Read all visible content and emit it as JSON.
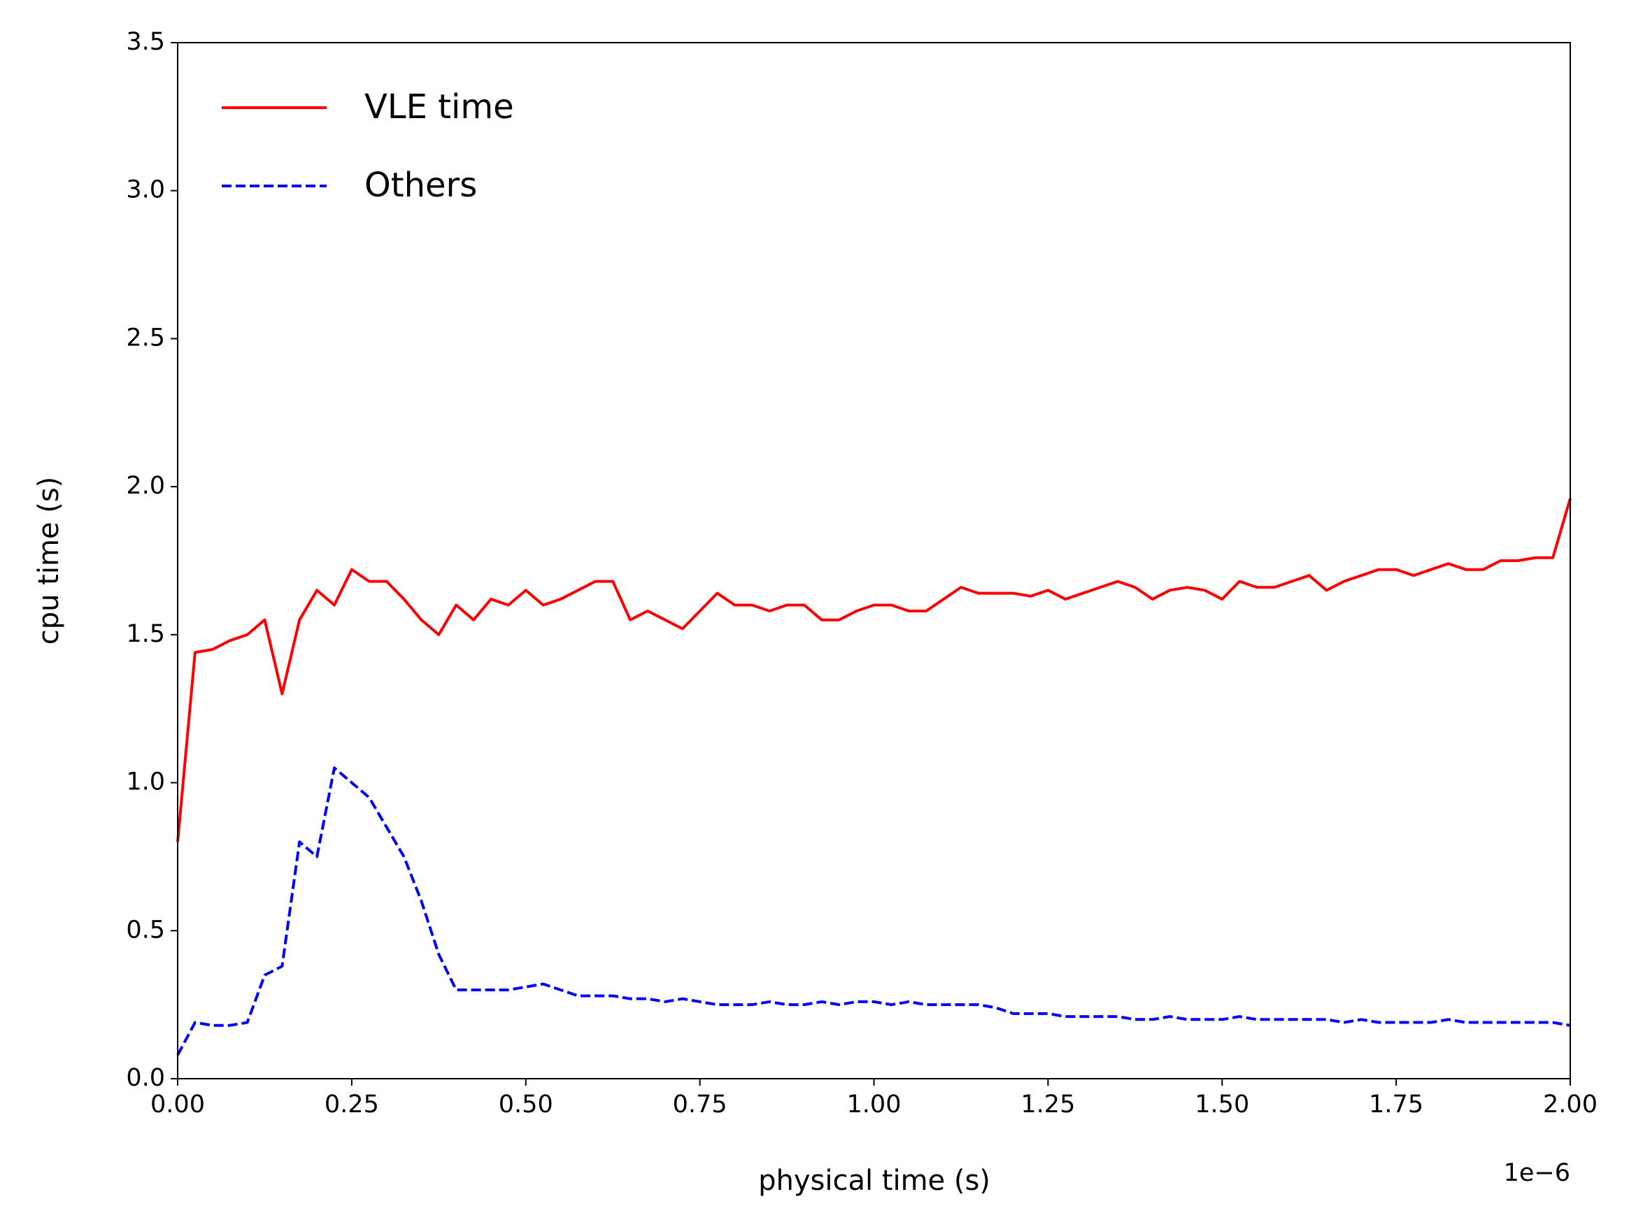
{
  "chart_data": {
    "type": "line",
    "xlabel": "physical time (s)",
    "ylabel": "cpu time (s)",
    "x_offset_label": "1e−6",
    "xlim": [
      0,
      2
    ],
    "ylim": [
      0,
      3.5
    ],
    "xticks": [
      {
        "value": 0,
        "label": "0.00"
      },
      {
        "value": 0.25,
        "label": "0.25"
      },
      {
        "value": 0.5,
        "label": "0.50"
      },
      {
        "value": 0.75,
        "label": "0.75"
      },
      {
        "value": 1,
        "label": "1.00"
      },
      {
        "value": 1.25,
        "label": "1.25"
      },
      {
        "value": 1.5,
        "label": "1.50"
      },
      {
        "value": 1.75,
        "label": "1.75"
      },
      {
        "value": 2,
        "label": "2.00"
      }
    ],
    "yticks": [
      {
        "value": 0,
        "label": "0.0"
      },
      0.5,
      {
        "value": 1,
        "label": "1.0"
      },
      1.5,
      {
        "value": 2,
        "label": "2.0"
      },
      2.5,
      {
        "value": 3,
        "label": "3.0"
      },
      3.5
    ],
    "legend": "upper left",
    "grid": false,
    "x": [
      0,
      0.025,
      0.05,
      0.075,
      0.1,
      0.125,
      0.15,
      0.175,
      0.2,
      0.225,
      0.25,
      0.275,
      0.3,
      0.325,
      0.35,
      0.375,
      0.4,
      0.425,
      0.45,
      0.475,
      0.5,
      0.525,
      0.55,
      0.575,
      0.6,
      0.625,
      0.65,
      0.675,
      0.7,
      0.725,
      0.75,
      0.775,
      0.8,
      0.825,
      0.85,
      0.875,
      0.9,
      0.925,
      0.95,
      0.975,
      1,
      1.025,
      1.05,
      1.075,
      1.1,
      1.125,
      1.15,
      1.175,
      1.2,
      1.225,
      1.25,
      1.275,
      1.3,
      1.325,
      1.35,
      1.375,
      1.4,
      1.425,
      1.45,
      1.475,
      1.5,
      1.525,
      1.55,
      1.575,
      1.6,
      1.625,
      1.65,
      1.675,
      1.7,
      1.725,
      1.75,
      1.775,
      1.8,
      1.825,
      1.85,
      1.875,
      1.9,
      1.925,
      1.95,
      1.975,
      2
    ],
    "series": [
      {
        "name": "VLE time",
        "color": "#ff0000",
        "linestyle": "solid",
        "values": [
          0.8,
          1.44,
          1.45,
          1.48,
          1.5,
          1.55,
          1.3,
          1.55,
          1.65,
          1.6,
          1.72,
          1.68,
          1.68,
          1.62,
          1.55,
          1.5,
          1.6,
          1.55,
          1.62,
          1.6,
          1.65,
          1.6,
          1.62,
          1.65,
          1.68,
          1.68,
          1.55,
          1.58,
          1.55,
          1.52,
          1.58,
          1.64,
          1.6,
          1.6,
          1.58,
          1.6,
          1.6,
          1.55,
          1.55,
          1.58,
          1.6,
          1.6,
          1.58,
          1.58,
          1.62,
          1.66,
          1.64,
          1.64,
          1.64,
          1.63,
          1.65,
          1.62,
          1.64,
          1.66,
          1.68,
          1.66,
          1.62,
          1.65,
          1.66,
          1.65,
          1.62,
          1.68,
          1.66,
          1.66,
          1.68,
          1.7,
          1.65,
          1.68,
          1.7,
          1.72,
          1.72,
          1.7,
          1.72,
          1.74,
          1.72,
          1.72,
          1.75,
          1.75,
          1.76,
          1.76,
          1.96
        ]
      },
      {
        "name": "Others",
        "color": "#0000ff",
        "linestyle": "dashed",
        "values": [
          0.08,
          0.19,
          0.18,
          0.18,
          0.19,
          0.35,
          0.38,
          0.8,
          0.75,
          1.05,
          1.0,
          0.95,
          0.85,
          0.75,
          0.6,
          0.42,
          0.3,
          0.3,
          0.3,
          0.3,
          0.31,
          0.32,
          0.3,
          0.28,
          0.28,
          0.28,
          0.27,
          0.27,
          0.26,
          0.27,
          0.26,
          0.25,
          0.25,
          0.25,
          0.26,
          0.25,
          0.25,
          0.26,
          0.25,
          0.26,
          0.26,
          0.25,
          0.26,
          0.25,
          0.25,
          0.25,
          0.25,
          0.24,
          0.22,
          0.22,
          0.22,
          0.21,
          0.21,
          0.21,
          0.21,
          0.2,
          0.2,
          0.21,
          0.2,
          0.2,
          0.2,
          0.21,
          0.2,
          0.2,
          0.2,
          0.2,
          0.2,
          0.19,
          0.2,
          0.19,
          0.19,
          0.19,
          0.19,
          0.2,
          0.19,
          0.19,
          0.19,
          0.19,
          0.19,
          0.19,
          0.18
        ]
      }
    ]
  }
}
